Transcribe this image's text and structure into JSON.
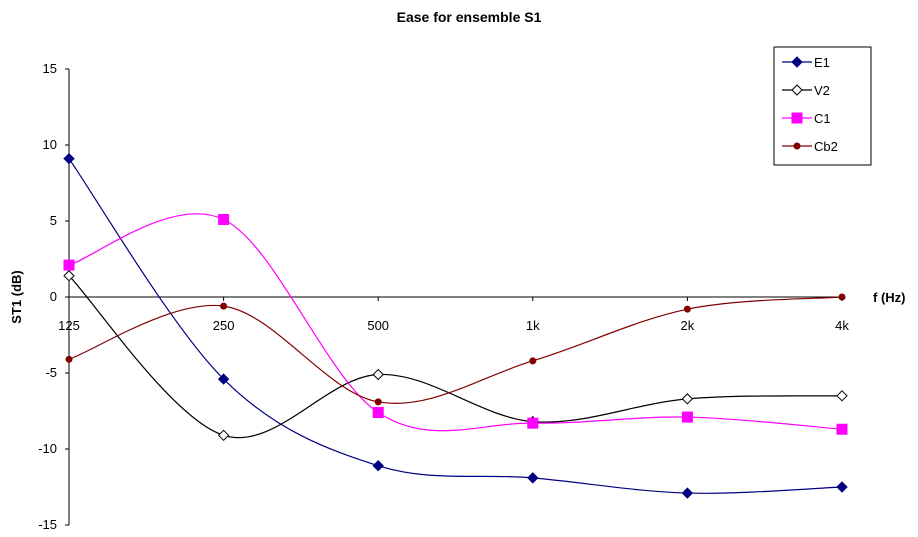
{
  "chart_data": {
    "type": "line",
    "title": "Ease for ensemble S1",
    "xlabel": "f (Hz)",
    "ylabel": "ST1 (dB)",
    "categories": [
      "125",
      "250",
      "500",
      "1k",
      "2k",
      "4k"
    ],
    "ylim": [
      -15,
      15
    ],
    "yticks": [
      15,
      10,
      5,
      0,
      -5,
      -10,
      -15
    ],
    "grid": false,
    "smooth": true,
    "legend": "top-right",
    "series": [
      {
        "name": "E1",
        "color": "#000080",
        "marker": "diamond-filled",
        "values": [
          9.1,
          -5.4,
          -11.1,
          -11.9,
          -12.9,
          -12.5
        ]
      },
      {
        "name": "V2",
        "color": "#000000",
        "marker": "diamond-open",
        "values": [
          1.4,
          -9.1,
          -5.1,
          -8.2,
          -6.7,
          -6.5
        ]
      },
      {
        "name": "C1",
        "color": "#ff00ff",
        "marker": "square-filled",
        "values": [
          2.1,
          5.1,
          -7.6,
          -8.3,
          -7.9,
          -8.7
        ]
      },
      {
        "name": "Cb2",
        "color": "#800000",
        "marker": "circle-filled",
        "values": [
          -4.1,
          -0.6,
          -6.9,
          -4.2,
          -0.8,
          0.0
        ]
      }
    ]
  }
}
